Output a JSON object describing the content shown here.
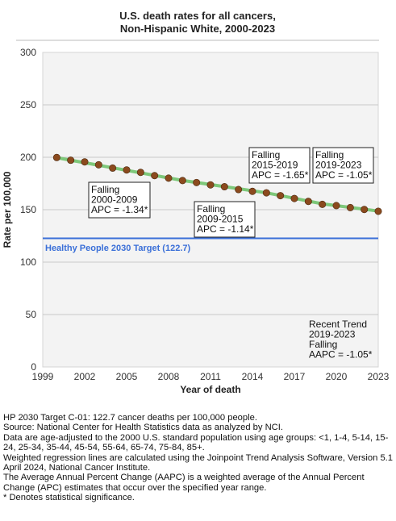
{
  "chart_data": {
    "type": "line",
    "title": "U.S. death rates for all cancers,",
    "subtitle": "Non-Hispanic White,  2000-2023",
    "xlabel": "Year of death",
    "ylabel": "Rate per 100,000",
    "xlim": [
      1999,
      2023
    ],
    "ylim": [
      0,
      300
    ],
    "x_ticks": [
      1999,
      2002,
      2005,
      2008,
      2011,
      2014,
      2017,
      2020,
      2023
    ],
    "y_ticks": [
      0,
      50,
      100,
      150,
      200,
      250,
      300
    ],
    "grid": true,
    "series": [
      {
        "color": "#8b4a1e",
        "x": [
          2000,
          2001,
          2002,
          2003,
          2004,
          2005,
          2006,
          2007,
          2008,
          2009,
          2010,
          2011,
          2012,
          2013,
          2014,
          2015,
          2016,
          2017,
          2018,
          2019,
          2020,
          2021,
          2022,
          2023
        ],
        "values": [
          199.8,
          197.2,
          195.6,
          192.8,
          189.7,
          187.9,
          185.6,
          182.5,
          180.1,
          177.8,
          175.9,
          173.7,
          171.9,
          169.2,
          167.5,
          166.1,
          163.4,
          160.7,
          157.9,
          155.1,
          153.9,
          152.0,
          150.2,
          148.5
        ]
      }
    ],
    "trend_lines": [
      {
        "x": [
          2000,
          2009
        ],
        "y": [
          199.6,
          177.9
        ]
      },
      {
        "x": [
          2009,
          2015
        ],
        "y": [
          177.9,
          166.1
        ]
      },
      {
        "x": [
          2015,
          2019
        ],
        "y": [
          166.1,
          155.6
        ]
      },
      {
        "x": [
          2019,
          2023
        ],
        "y": [
          155.6,
          148.7
        ]
      }
    ],
    "trend_color": "#7ec87a",
    "target": {
      "value": 122.7,
      "label": "Healthy People 2030 Target (122.7)",
      "color": "#3a6fd8"
    },
    "annotations": [
      {
        "lines": [
          "Falling",
          "2000-2009",
          "APC = -1.34*"
        ],
        "boxed": true
      },
      {
        "lines": [
          "Falling",
          "2009-2015",
          "APC = -1.14*"
        ],
        "boxed": true
      },
      {
        "lines": [
          "Falling",
          "2015-2019",
          "APC = -1.65*"
        ],
        "boxed": true
      },
      {
        "lines": [
          "Falling",
          "2019-2023",
          "APC = -1.05*"
        ],
        "boxed": true
      },
      {
        "lines": [
          "Recent Trend",
          "2019-2023",
          "Falling",
          "AAPC = -1.05*"
        ],
        "boxed": false
      }
    ]
  },
  "footnotes": [
    "HP 2030 Target C-01: 122.7 cancer deaths per 100,000 people.",
    "Source: National Center for Health Statistics data as analyzed by NCI.",
    "Data are age-adjusted to the 2000 U.S. standard population using age groups: <1, 1-4, 5-14, 15-24, 25-34, 35-44, 45-54, 55-64, 65-74, 75-84, 85+.",
    "Weighted regression lines are calculated using the Joinpoint Trend Analysis Software, Version 5.1 April 2024, National Cancer Institute.",
    "The Average Annual Percent Change (AAPC) is a weighted average of the Annual Percent Change (APC) estimates that occur over the specified year range.",
    "* Denotes statistical significance."
  ]
}
